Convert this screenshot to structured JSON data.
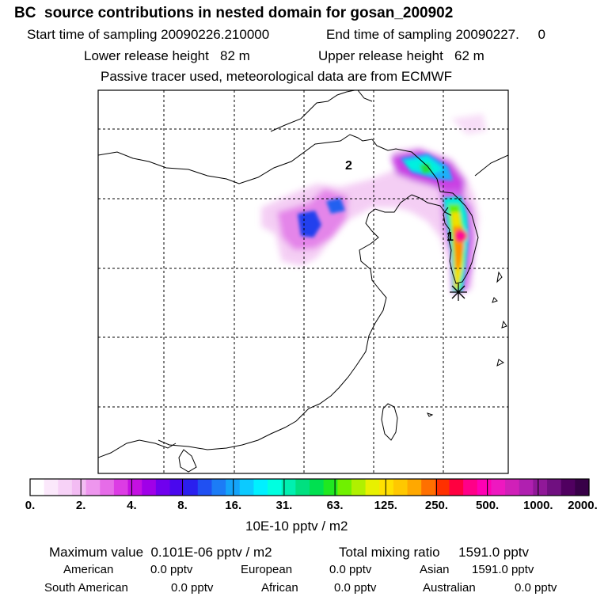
{
  "header": {
    "title": "BC  source contributions in nested domain for gosan_200902",
    "start_sampling": "Start time of sampling 20090226.210000",
    "end_sampling": "End time of sampling 20090227.     0",
    "lower_release": "Lower release height   82 m",
    "upper_release": "Upper release height   62 m",
    "tracer_note": "Passive tracer used, meteorological data are from ECMWF"
  },
  "map": {
    "marker_labels": [
      "1",
      "2"
    ],
    "receptor_marker": "asterisk-icon"
  },
  "colorbar": {
    "tick_labels": [
      "0.",
      "2.",
      "4.",
      "8.",
      "16.",
      "31.",
      "63.",
      "125.",
      "250.",
      "500.",
      "1000.",
      "2000."
    ],
    "unit_label": "10E-10 pptv / m2",
    "colors": [
      "#ffffff",
      "#fbe8fb",
      "#f7d2f7",
      "#f3bcf3",
      "#ee96ee",
      "#e66ce8",
      "#dc3ce4",
      "#c410e2",
      "#a000e8",
      "#7000ee",
      "#4a08ee",
      "#2a20ee",
      "#2050f2",
      "#1c7cf6",
      "#14a4fa",
      "#0ccaff",
      "#00f0ff",
      "#00ffe0",
      "#00f0b0",
      "#00e080",
      "#00e050",
      "#20e820",
      "#70f000",
      "#b0f000",
      "#e8f000",
      "#ffe000",
      "#ffc800",
      "#ffa800",
      "#ff7000",
      "#ff3000",
      "#ff0040",
      "#ff0088",
      "#ff00b4",
      "#ee18c0",
      "#d020b8",
      "#b020b0",
      "#901898",
      "#701080",
      "#500060",
      "#380048"
    ]
  },
  "summary": {
    "maximum_value": "Maximum value  0.101E-06 pptv / m2",
    "total_mixing": "Total mixing ratio     1591.0 pptv",
    "american_label": "American",
    "american_value": "0.0 pptv",
    "european_label": "European",
    "european_value": "0.0 pptv",
    "asian_label": "Asian",
    "asian_value": "1591.0 pptv",
    "south_american_label": "South American",
    "south_american_value": "0.0 pptv",
    "african_label": "African",
    "african_value": "0.0 pptv",
    "australian_label": "Australian",
    "australian_value": "0.0 pptv"
  }
}
